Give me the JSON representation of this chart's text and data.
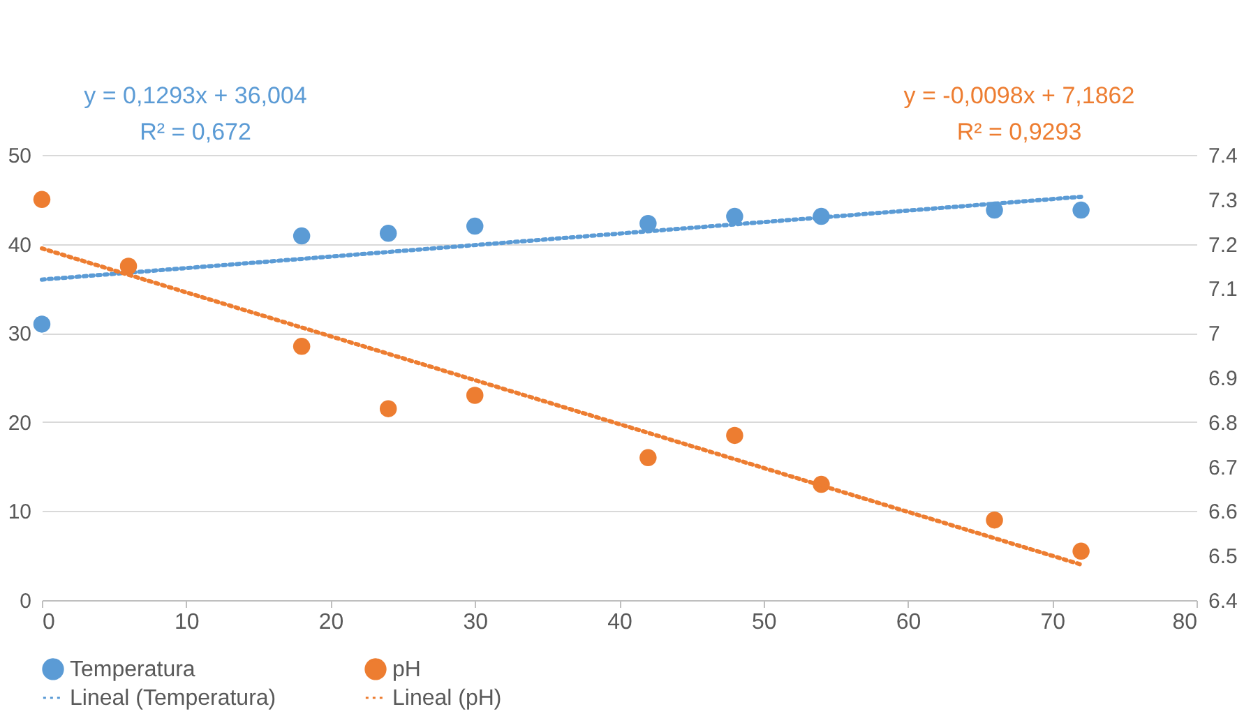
{
  "chart_data": {
    "type": "scatter",
    "xlim": [
      0,
      80
    ],
    "xticks": [
      0,
      10,
      20,
      30,
      40,
      50,
      60,
      70,
      80
    ],
    "ylim": [
      0,
      50
    ],
    "yticks": [
      0,
      10,
      20,
      30,
      40,
      50
    ],
    "y2lim": [
      6.4,
      7.4
    ],
    "y2ticks": [
      6.4,
      6.5,
      6.6,
      6.7,
      6.8,
      6.9,
      7,
      7.1,
      7.2,
      7.3,
      7.4
    ],
    "grid": "y",
    "legend": "bottom",
    "annotations": [
      "y = 0,1293x + 36,004\nR² = 0,672",
      "y = -0,0098x + 7,1862\nR² = 0,9293"
    ],
    "series": [
      {
        "name": "Temperatura",
        "marker": "circle",
        "color": "#5b9bd5",
        "x": [
          0,
          18,
          24,
          30,
          42,
          48,
          54,
          66,
          72
        ],
        "values": [
          31,
          40.9,
          41.2,
          42,
          42.3,
          43.1,
          43.1,
          43.8,
          43.8
        ]
      },
      {
        "name": "pH",
        "marker": "circle",
        "axis": "y2",
        "color": "#ed7d31",
        "x": [
          0,
          6,
          18,
          24,
          30,
          42,
          48,
          54,
          66,
          72
        ],
        "values": [
          7.3,
          7.15,
          6.97,
          6.83,
          6.86,
          6.72,
          6.77,
          6.66,
          6.58,
          6.51
        ]
      },
      {
        "name": "Lineal (Temperatura)",
        "type": "line",
        "line_style": "dotted",
        "color": "#5b9bd5",
        "x": [
          0,
          72
        ],
        "values": [
          36.0,
          45.3
        ]
      },
      {
        "name": "Lineal (pH)",
        "type": "line",
        "line_style": "dotted",
        "axis": "y2",
        "color": "#ed7d31",
        "x": [
          0,
          72
        ],
        "values": [
          7.19,
          6.48
        ]
      }
    ]
  }
}
